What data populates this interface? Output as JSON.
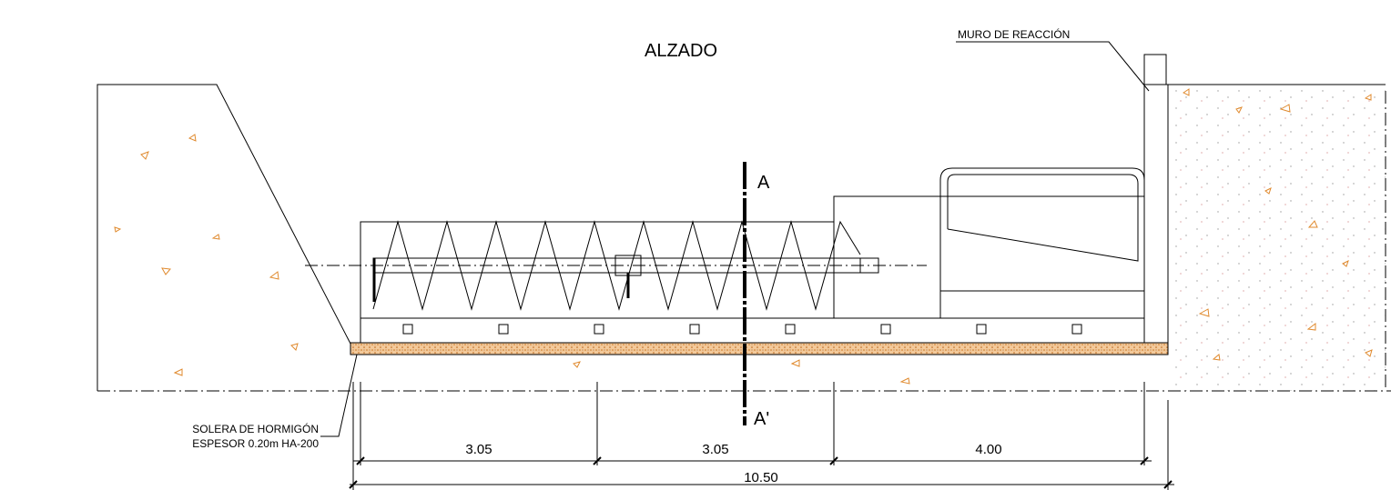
{
  "title": "ALZADO",
  "labels": {
    "wall": "MURO DE REACCIÓN",
    "section_top": "A",
    "section_bottom": "A'",
    "slab_line1": "SOLERA DE HORMIGÓN",
    "slab_line2": "ESPESOR 0.20m HA-200"
  },
  "dimensions": {
    "segments": [
      "3.05",
      "3.05",
      "4.00"
    ],
    "total": "10.50"
  }
}
